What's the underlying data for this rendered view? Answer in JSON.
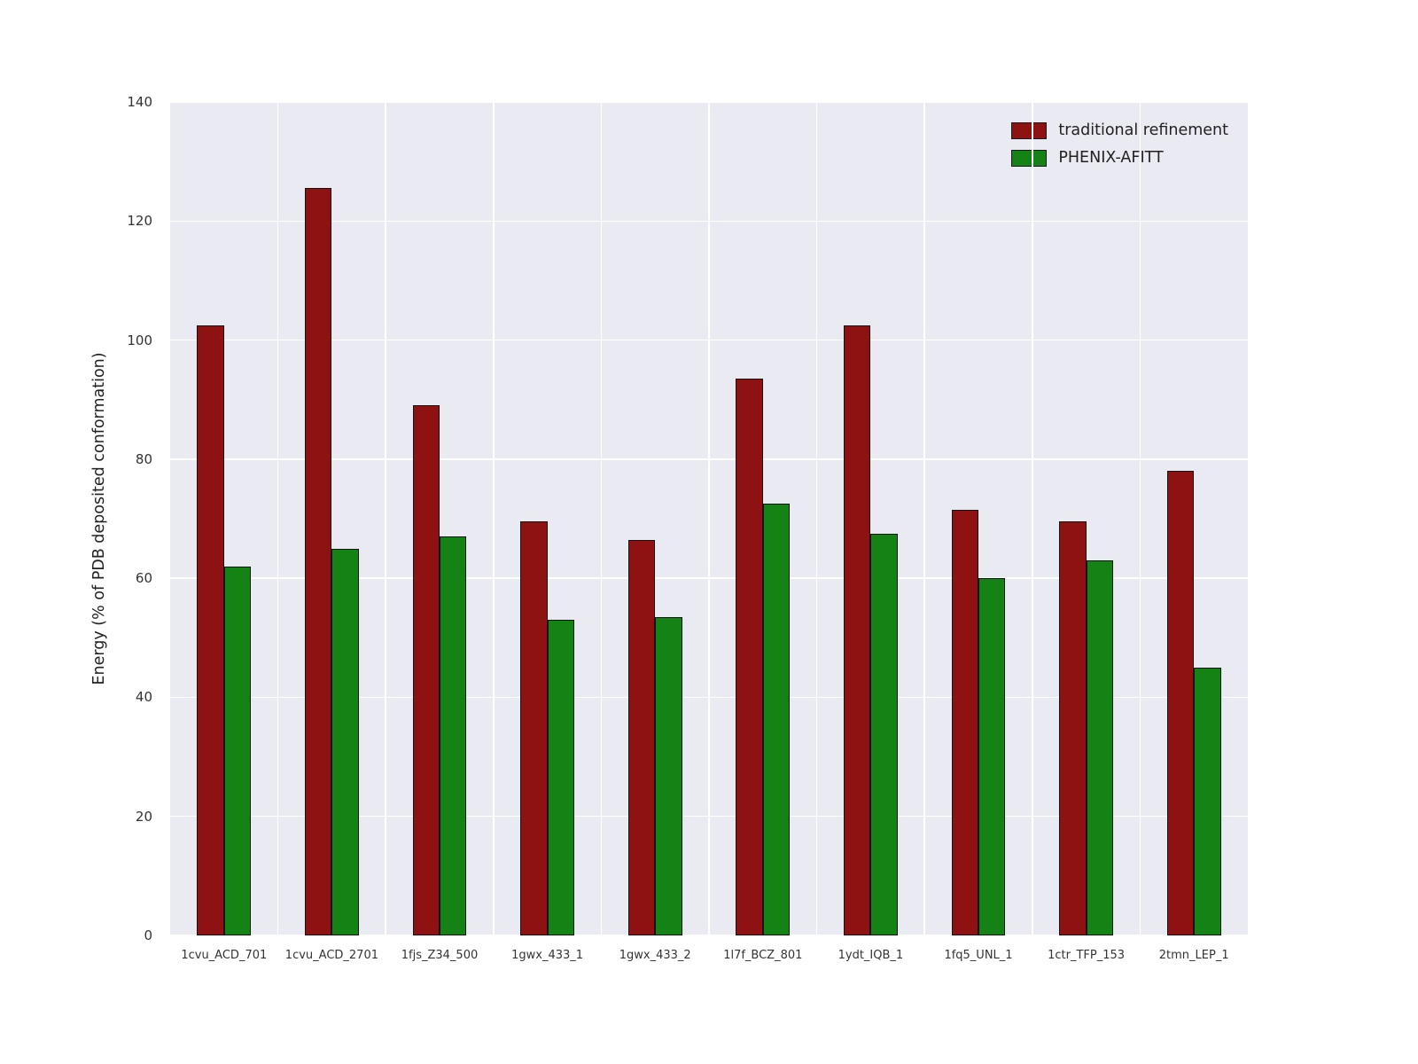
{
  "chart_data": {
    "type": "bar",
    "title": "",
    "xlabel": "",
    "ylabel": "Energy (% of PDB deposited conformation)",
    "ylim": [
      0,
      140
    ],
    "yticks": [
      0,
      20,
      40,
      60,
      80,
      100,
      120,
      140
    ],
    "grid": true,
    "legend_position": "upper right",
    "plot_background": "#eaeaf2",
    "grid_color": "#ffffff",
    "categories": [
      "1cvu_ACD_701",
      "1cvu_ACD_2701",
      "1fjs_Z34_500",
      "1gwx_433_1",
      "1gwx_433_2",
      "1l7f_BCZ_801",
      "1ydt_IQB_1",
      "1fq5_UNL_1",
      "1ctr_TFP_153",
      "2tmn_LEP_1"
    ],
    "series": [
      {
        "name": "traditional refinement",
        "color": "#8e1212",
        "values": [
          102.5,
          125.5,
          89,
          69.5,
          66.5,
          93.5,
          102.5,
          71.5,
          69.5,
          78
        ]
      },
      {
        "name": "PHENIX-AFITT",
        "color": "#148214",
        "values": [
          62,
          65,
          67,
          53,
          53.5,
          72.5,
          67.5,
          60,
          63,
          45
        ]
      }
    ]
  }
}
